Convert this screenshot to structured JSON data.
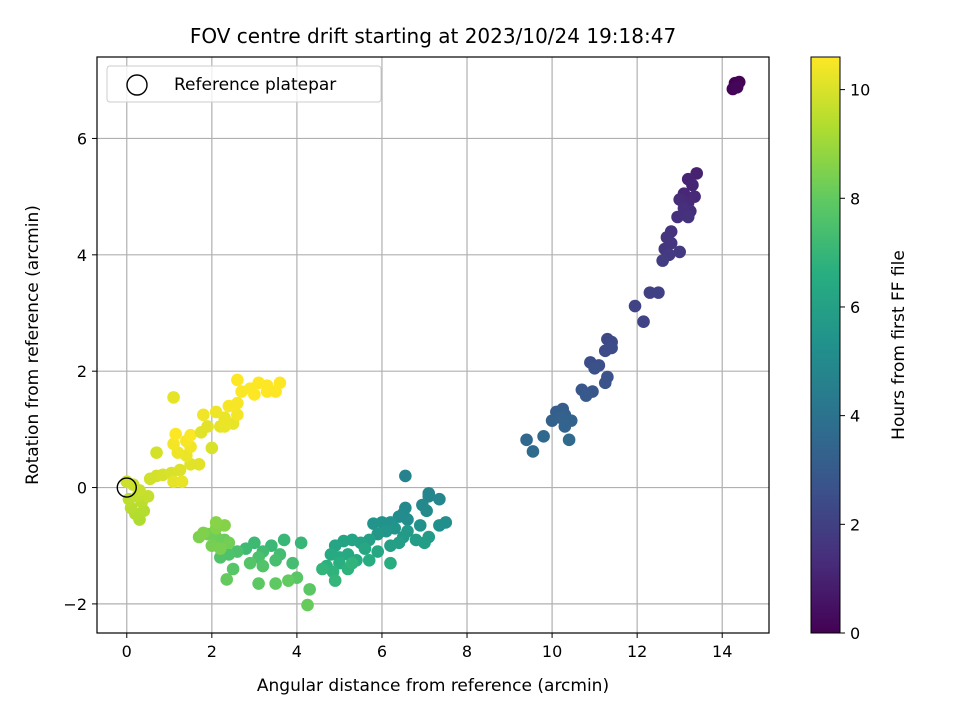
{
  "chart_data": {
    "type": "scatter",
    "title": "FOV centre drift starting at 2023/10/24 19:18:47",
    "xlabel": "Angular distance from reference (arcmin)",
    "ylabel": "Rotation from reference (arcmin)",
    "xlim": [
      -0.7,
      15.1
    ],
    "ylim": [
      -2.5,
      7.4
    ],
    "xticks": [
      "0",
      "2",
      "4",
      "6",
      "8",
      "10",
      "12",
      "14"
    ],
    "yticks": [
      "−2",
      "0",
      "2",
      "4",
      "6"
    ],
    "grid": true,
    "legend": {
      "placement": "upper-left",
      "entries": [
        "Reference platepar"
      ]
    },
    "reference_point": {
      "x": 0,
      "y": 0
    },
    "colorbar": {
      "label": "Hours from first FF file",
      "range": [
        0,
        10.6
      ],
      "ticks": [
        "0",
        "2",
        "4",
        "6",
        "8",
        "10"
      ],
      "colormap": "viridis"
    },
    "points": [
      [
        14.3,
        6.95,
        0.0
      ],
      [
        14.4,
        6.97,
        0.05
      ],
      [
        14.25,
        6.85,
        0.1
      ],
      [
        14.35,
        6.88,
        0.15
      ],
      [
        13.4,
        5.4,
        1.0
      ],
      [
        13.2,
        5.3,
        1.05
      ],
      [
        13.3,
        5.2,
        1.1
      ],
      [
        13.1,
        5.05,
        1.15
      ],
      [
        13.35,
        5.0,
        1.2
      ],
      [
        13.2,
        4.9,
        1.25
      ],
      [
        13.0,
        4.95,
        1.3
      ],
      [
        13.25,
        4.75,
        1.35
      ],
      [
        13.1,
        4.8,
        1.4
      ],
      [
        12.95,
        4.65,
        1.45
      ],
      [
        13.2,
        4.65,
        1.5
      ],
      [
        12.8,
        4.4,
        1.55
      ],
      [
        12.7,
        4.3,
        1.6
      ],
      [
        12.8,
        4.2,
        1.65
      ],
      [
        12.65,
        4.1,
        1.7
      ],
      [
        13.0,
        4.05,
        1.75
      ],
      [
        12.75,
        4.0,
        1.8
      ],
      [
        12.6,
        3.9,
        1.85
      ],
      [
        12.3,
        3.35,
        2.0
      ],
      [
        12.5,
        3.35,
        2.05
      ],
      [
        11.95,
        3.12,
        2.1
      ],
      [
        12.15,
        2.85,
        2.15
      ],
      [
        11.3,
        2.55,
        2.3
      ],
      [
        11.4,
        2.5,
        2.35
      ],
      [
        11.4,
        2.4,
        2.4
      ],
      [
        11.25,
        2.35,
        2.45
      ],
      [
        10.9,
        2.15,
        2.5
      ],
      [
        11.1,
        2.1,
        2.55
      ],
      [
        11.0,
        2.05,
        2.6
      ],
      [
        11.3,
        1.9,
        2.65
      ],
      [
        11.25,
        1.8,
        2.7
      ],
      [
        10.7,
        1.68,
        2.85
      ],
      [
        10.95,
        1.65,
        2.9
      ],
      [
        10.8,
        1.58,
        2.95
      ],
      [
        10.25,
        1.35,
        3.1
      ],
      [
        10.1,
        1.3,
        3.15
      ],
      [
        10.3,
        1.25,
        3.2
      ],
      [
        10.0,
        1.15,
        3.25
      ],
      [
        10.2,
        1.2,
        3.3
      ],
      [
        10.45,
        1.15,
        3.35
      ],
      [
        10.3,
        1.05,
        3.4
      ],
      [
        9.8,
        0.88,
        3.55
      ],
      [
        9.4,
        0.82,
        3.6
      ],
      [
        10.4,
        0.82,
        3.65
      ],
      [
        9.55,
        0.62,
        3.7
      ],
      [
        6.55,
        0.2,
        4.7
      ],
      [
        7.1,
        -0.1,
        4.75
      ],
      [
        7.1,
        -0.15,
        4.8
      ],
      [
        7.35,
        -0.2,
        4.85
      ],
      [
        6.95,
        -0.3,
        4.9
      ],
      [
        6.55,
        -0.35,
        4.95
      ],
      [
        7.05,
        -0.4,
        5.0
      ],
      [
        6.5,
        -0.45,
        5.05
      ],
      [
        6.4,
        -0.5,
        5.1
      ],
      [
        6.6,
        -0.55,
        5.15
      ],
      [
        7.5,
        -0.6,
        5.2
      ],
      [
        7.35,
        -0.65,
        5.25
      ],
      [
        6.9,
        -0.65,
        5.3
      ],
      [
        6.2,
        -0.6,
        5.35
      ],
      [
        6.0,
        -0.6,
        5.4
      ],
      [
        5.8,
        -0.62,
        5.45
      ],
      [
        6.3,
        -0.7,
        5.5
      ],
      [
        6.1,
        -0.75,
        5.55
      ],
      [
        5.9,
        -0.8,
        5.6
      ],
      [
        6.6,
        -0.75,
        5.65
      ],
      [
        6.5,
        -0.85,
        5.7
      ],
      [
        7.1,
        -0.85,
        5.75
      ],
      [
        6.8,
        -0.9,
        5.8
      ],
      [
        7.0,
        -0.95,
        5.85
      ],
      [
        6.4,
        -0.95,
        5.9
      ],
      [
        6.2,
        -1.0,
        5.95
      ],
      [
        5.7,
        -0.9,
        6.0
      ],
      [
        5.5,
        -0.95,
        6.05
      ],
      [
        5.3,
        -0.9,
        6.1
      ],
      [
        5.1,
        -0.92,
        6.15
      ],
      [
        4.9,
        -1.0,
        6.2
      ],
      [
        5.6,
        -1.05,
        6.25
      ],
      [
        5.9,
        -1.1,
        6.3
      ],
      [
        5.2,
        -1.15,
        6.35
      ],
      [
        4.8,
        -1.15,
        6.4
      ],
      [
        5.0,
        -1.2,
        6.45
      ],
      [
        5.4,
        -1.25,
        6.5
      ],
      [
        5.7,
        -1.25,
        6.55
      ],
      [
        6.2,
        -1.3,
        6.6
      ],
      [
        5.0,
        -1.3,
        6.65
      ],
      [
        4.7,
        -1.35,
        6.7
      ],
      [
        5.2,
        -1.4,
        6.75
      ],
      [
        4.85,
        -1.45,
        6.8
      ],
      [
        5.3,
        -1.3,
        6.85
      ],
      [
        4.6,
        -1.4,
        6.9
      ],
      [
        4.9,
        -1.6,
        6.95
      ],
      [
        4.1,
        -0.95,
        7.0
      ],
      [
        3.7,
        -0.9,
        7.05
      ],
      [
        3.4,
        -1.0,
        7.1
      ],
      [
        3.0,
        -0.95,
        7.15
      ],
      [
        2.8,
        -1.05,
        7.2
      ],
      [
        3.2,
        -1.1,
        7.25
      ],
      [
        3.6,
        -1.15,
        7.3
      ],
      [
        3.9,
        -1.3,
        7.35
      ],
      [
        3.5,
        -1.25,
        7.4
      ],
      [
        3.1,
        -1.2,
        7.45
      ],
      [
        2.6,
        -1.1,
        7.5
      ],
      [
        2.4,
        -1.15,
        7.55
      ],
      [
        2.2,
        -1.2,
        7.6
      ],
      [
        3.2,
        -1.35,
        7.65
      ],
      [
        2.9,
        -1.3,
        7.7
      ],
      [
        2.5,
        -1.4,
        7.75
      ],
      [
        4.0,
        -1.55,
        7.8
      ],
      [
        4.3,
        -1.75,
        7.85
      ],
      [
        3.1,
        -1.65,
        7.9
      ],
      [
        3.5,
        -1.65,
        7.95
      ],
      [
        3.8,
        -1.6,
        8.0
      ],
      [
        2.35,
        -1.58,
        8.05
      ],
      [
        4.25,
        -2.02,
        8.1
      ],
      [
        2.3,
        -0.9,
        8.15
      ],
      [
        2.1,
        -0.85,
        8.2
      ],
      [
        1.9,
        -0.8,
        8.25
      ],
      [
        2.4,
        -0.95,
        8.3
      ],
      [
        2.0,
        -1.0,
        8.35
      ],
      [
        2.2,
        -1.05,
        8.4
      ],
      [
        1.7,
        -0.85,
        8.45
      ],
      [
        1.8,
        -0.78,
        8.5
      ],
      [
        2.1,
        -0.7,
        8.55
      ],
      [
        2.3,
        -0.65,
        8.6
      ],
      [
        2.1,
        -0.6,
        8.65
      ],
      [
        0.3,
        -0.55,
        9.3
      ],
      [
        0.2,
        -0.45,
        9.35
      ],
      [
        0.4,
        -0.4,
        9.4
      ],
      [
        0.1,
        -0.35,
        9.45
      ],
      [
        0.35,
        -0.25,
        9.5
      ],
      [
        0.05,
        -0.2,
        9.55
      ],
      [
        0.25,
        -0.15,
        9.6
      ],
      [
        0.5,
        -0.15,
        9.65
      ],
      [
        0.3,
        -0.05,
        9.7
      ],
      [
        0.15,
        0.05,
        9.75
      ],
      [
        0.0,
        0.1,
        9.8
      ],
      [
        0.55,
        0.15,
        9.85
      ],
      [
        0.7,
        0.2,
        9.9
      ],
      [
        0.85,
        0.22,
        9.95
      ],
      [
        1.05,
        0.25,
        10.0
      ],
      [
        1.25,
        0.3,
        10.05
      ],
      [
        1.5,
        0.4,
        10.1
      ],
      [
        1.7,
        0.4,
        10.15
      ],
      [
        1.1,
        0.1,
        10.2
      ],
      [
        1.3,
        0.1,
        10.25
      ],
      [
        1.4,
        0.55,
        10.3
      ],
      [
        1.2,
        0.6,
        10.35
      ],
      [
        1.5,
        0.7,
        10.4
      ],
      [
        1.1,
        0.75,
        10.45
      ],
      [
        1.4,
        0.8,
        10.5
      ],
      [
        1.5,
        0.9,
        10.55
      ],
      [
        1.15,
        0.92,
        10.6
      ],
      [
        0.7,
        0.6,
        9.9
      ],
      [
        2.0,
        0.68,
        10.0
      ],
      [
        1.75,
        0.95,
        10.1
      ],
      [
        1.9,
        1.05,
        10.15
      ],
      [
        2.2,
        1.05,
        10.2
      ],
      [
        2.5,
        1.1,
        10.25
      ],
      [
        2.3,
        1.2,
        10.3
      ],
      [
        2.1,
        1.3,
        10.35
      ],
      [
        1.8,
        1.25,
        10.4
      ],
      [
        2.6,
        1.25,
        10.45
      ],
      [
        2.4,
        1.4,
        10.5
      ],
      [
        2.6,
        1.45,
        10.5
      ],
      [
        1.1,
        1.55,
        10.2
      ],
      [
        2.7,
        1.65,
        10.55
      ],
      [
        2.9,
        1.7,
        10.55
      ],
      [
        3.0,
        1.6,
        10.6
      ],
      [
        3.3,
        1.75,
        10.6
      ],
      [
        3.5,
        1.65,
        10.6
      ],
      [
        3.3,
        1.65,
        10.6
      ],
      [
        3.6,
        1.8,
        10.6
      ],
      [
        3.1,
        1.8,
        10.6
      ],
      [
        2.6,
        1.85,
        10.6
      ],
      [
        2.3,
        1.05,
        10.3
      ]
    ]
  }
}
